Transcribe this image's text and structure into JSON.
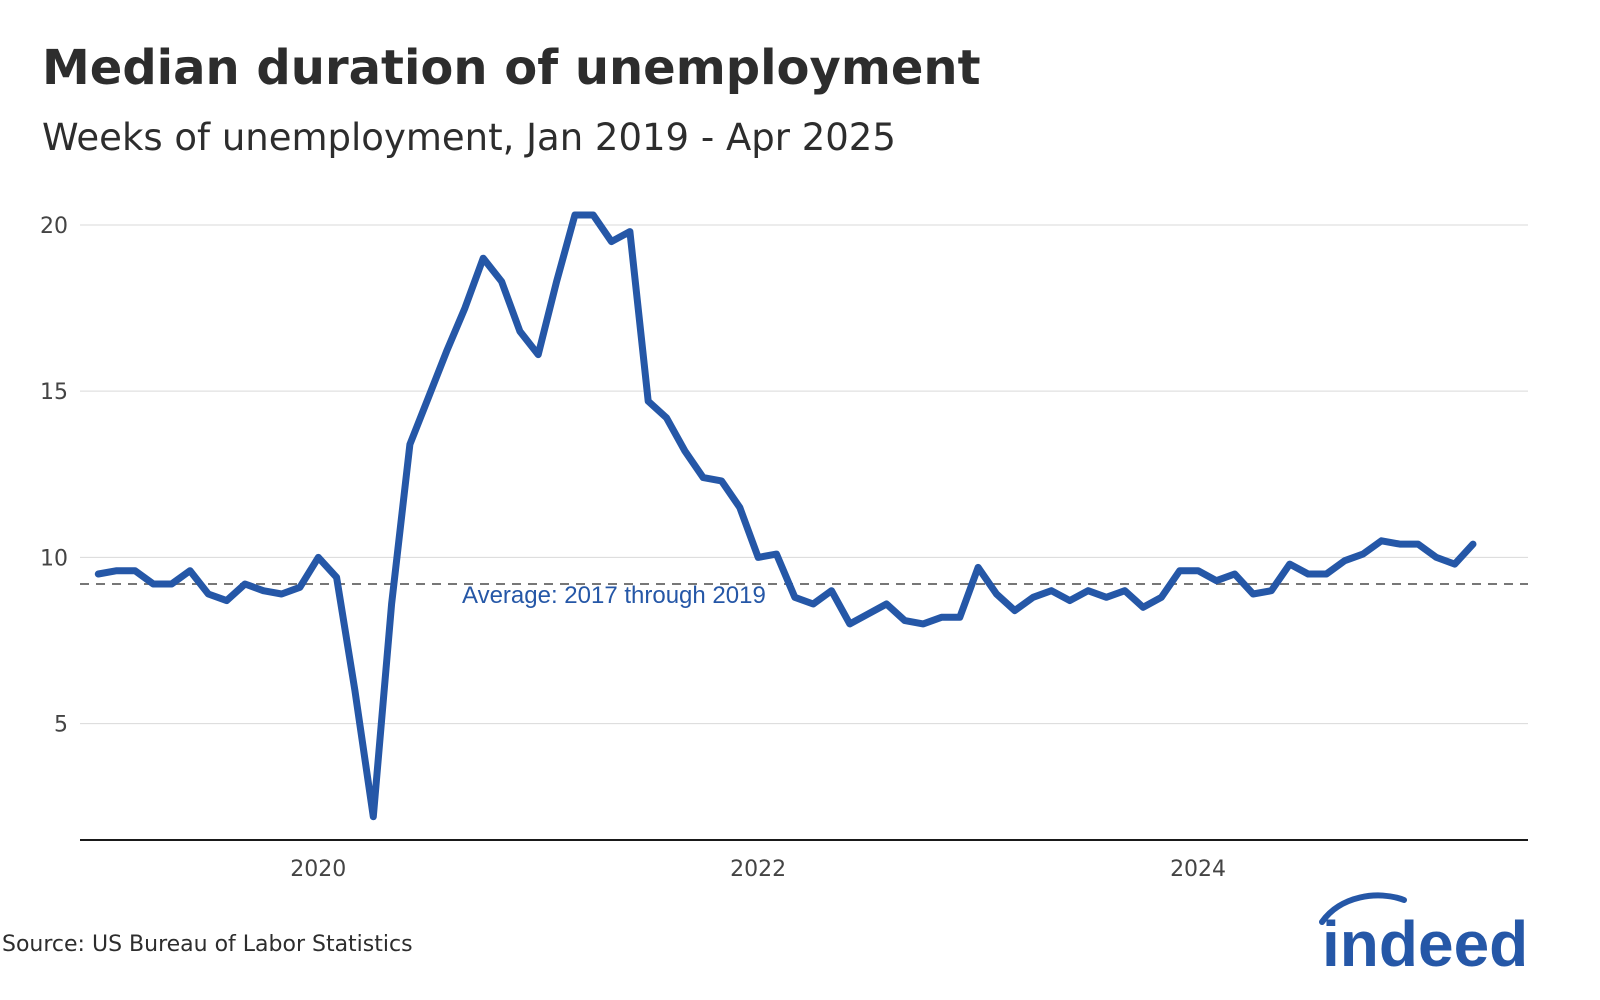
{
  "title": "Median duration of unemployment",
  "subtitle": "Weeks of unemployment, Jan 2019 - Apr 2025",
  "source": "Source: US Bureau of Labor Statistics",
  "logo_text": "indeed",
  "colors": {
    "line": "#2557a7",
    "average": "#777777",
    "grid": "#d9d9d9",
    "axis": "#1a1a1a"
  },
  "chart_data": {
    "type": "line",
    "title": "Median duration of unemployment",
    "subtitle": "Weeks of unemployment, Jan 2019 - Apr 2025",
    "xlabel": "",
    "ylabel": "",
    "ylim": [
      1.5,
      20.6
    ],
    "y_ticks": [
      5,
      10,
      15,
      20
    ],
    "x_ticks": [
      {
        "label": "2020",
        "date": "2020-01"
      },
      {
        "label": "2022",
        "date": "2022-01"
      },
      {
        "label": "2024",
        "date": "2024-01"
      }
    ],
    "xlim": [
      "2018-12",
      "2025-07"
    ],
    "grid": true,
    "reference_line": {
      "label": "Average: 2017 through 2019",
      "value": 9.2,
      "style": "dashed"
    },
    "series": [
      {
        "x": [
          "2019-01",
          "2019-02",
          "2019-03",
          "2019-04",
          "2019-05",
          "2019-06",
          "2019-07",
          "2019-08",
          "2019-09",
          "2019-10",
          "2019-11",
          "2019-12",
          "2020-01",
          "2020-02",
          "2020-03",
          "2020-04",
          "2020-05",
          "2020-06",
          "2020-07",
          "2020-08",
          "2020-09",
          "2020-10",
          "2020-11",
          "2020-12",
          "2021-01",
          "2021-02",
          "2021-03",
          "2021-04",
          "2021-05",
          "2021-06",
          "2021-07",
          "2021-08",
          "2021-09",
          "2021-10",
          "2021-11",
          "2021-12",
          "2022-01",
          "2022-02",
          "2022-03",
          "2022-04",
          "2022-05",
          "2022-06",
          "2022-07",
          "2022-08",
          "2022-09",
          "2022-10",
          "2022-11",
          "2022-12",
          "2023-01",
          "2023-02",
          "2023-03",
          "2023-04",
          "2023-05",
          "2023-06",
          "2023-07",
          "2023-08",
          "2023-09",
          "2023-10",
          "2023-11",
          "2023-12",
          "2024-01",
          "2024-02",
          "2024-03",
          "2024-04",
          "2024-05",
          "2024-06",
          "2024-07",
          "2024-08",
          "2024-09",
          "2024-10",
          "2024-11",
          "2024-12",
          "2025-01",
          "2025-02",
          "2025-03",
          "2025-04"
        ],
        "values": [
          9.5,
          9.6,
          9.6,
          9.2,
          9.2,
          9.6,
          8.9,
          8.7,
          9.2,
          9.0,
          8.9,
          9.1,
          10.0,
          9.4,
          6.0,
          2.2,
          8.6,
          13.4,
          14.8,
          16.2,
          17.5,
          19.0,
          18.3,
          16.8,
          16.1,
          18.3,
          20.3,
          20.3,
          19.5,
          19.8,
          14.7,
          14.2,
          13.2,
          12.4,
          12.3,
          11.5,
          10.0,
          10.1,
          8.8,
          8.6,
          9.0,
          8.0,
          8.3,
          8.6,
          8.1,
          8.0,
          8.2,
          8.2,
          9.7,
          8.9,
          8.4,
          8.8,
          9.0,
          8.7,
          9.0,
          8.8,
          9.0,
          8.5,
          8.8,
          9.6,
          9.6,
          9.3,
          9.5,
          8.9,
          9.0,
          9.8,
          9.5,
          9.5,
          9.9,
          10.1,
          10.5,
          10.4,
          10.4,
          10.0,
          9.8,
          10.4
        ]
      }
    ]
  }
}
